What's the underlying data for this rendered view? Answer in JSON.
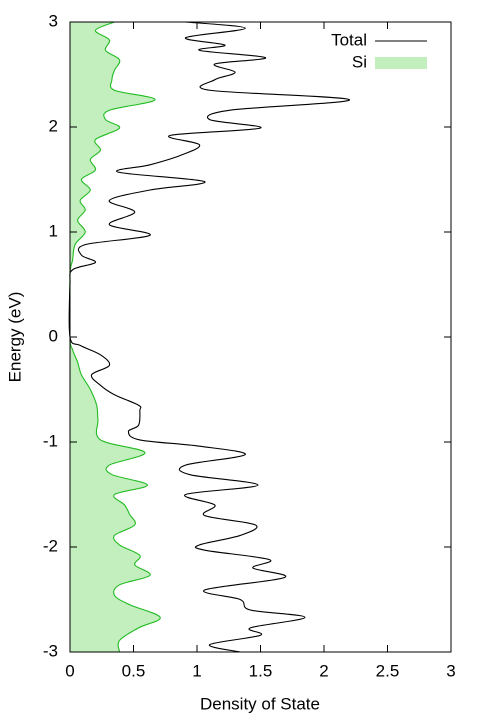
{
  "chart_data": {
    "type": "line",
    "xlabel": "Density of State",
    "ylabel": "Energy (eV)",
    "xlim": [
      0,
      3
    ],
    "xticks": [
      0,
      0.5,
      1,
      1.5,
      2,
      2.5,
      3
    ],
    "ylim": [
      -3,
      3
    ],
    "yticks": [
      -3,
      -2,
      -1,
      0,
      1,
      2,
      3
    ],
    "legend": "upper right",
    "series": [
      {
        "name": "Total",
        "color": "#000000",
        "fill": false,
        "energy": [
          3.0,
          2.94,
          2.85,
          2.78,
          2.73,
          2.66,
          2.6,
          2.52,
          2.45,
          2.35,
          2.26,
          2.16,
          2.07,
          1.99,
          1.92,
          1.83,
          1.73,
          1.64,
          1.57,
          1.48,
          1.4,
          1.3,
          1.19,
          1.07,
          0.97,
          0.88,
          0.78,
          0.71,
          0.64,
          0.5,
          0,
          -0.08,
          -0.17,
          -0.27,
          -0.36,
          -0.46,
          -0.55,
          -0.65,
          -0.7,
          -0.84,
          -0.9,
          -0.98,
          -1.04,
          -1.12,
          -1.22,
          -1.31,
          -1.41,
          -1.5,
          -1.6,
          -1.7,
          -1.79,
          -1.89,
          -1.98,
          -2.03,
          -2.12,
          -2.2,
          -2.29,
          -2.41,
          -2.5,
          -2.6,
          -2.67,
          -2.77,
          -2.84,
          -2.93,
          -3.0
        ],
        "values": [
          0.91,
          1.38,
          0.91,
          1.22,
          1.02,
          1.54,
          1.14,
          1.3,
          1.14,
          1.1,
          2.2,
          1.26,
          1.1,
          1.5,
          0.79,
          1.02,
          0.87,
          0.63,
          0.38,
          1.06,
          0.63,
          0.31,
          0.51,
          0.31,
          0.63,
          0.12,
          0.09,
          0.2,
          0.02,
          0,
          0,
          0.08,
          0.24,
          0.31,
          0.17,
          0.24,
          0.35,
          0.54,
          0.55,
          0.54,
          0.46,
          0.55,
          1.02,
          1.38,
          0.91,
          0.94,
          1.48,
          0.91,
          1.14,
          1.06,
          1.46,
          1.34,
          1.02,
          1.06,
          1.57,
          1.44,
          1.69,
          1.06,
          1.34,
          1.42,
          1.85,
          1.42,
          1.5,
          1.1,
          1.34
        ]
      },
      {
        "name": "Si",
        "color": "#22bb22",
        "fill": true,
        "fill_color": "#c2efbd",
        "energy": [
          3.0,
          2.92,
          2.83,
          2.73,
          2.64,
          2.54,
          2.45,
          2.35,
          2.26,
          2.16,
          2.07,
          1.99,
          1.88,
          1.78,
          1.69,
          1.59,
          1.5,
          1.4,
          1.3,
          1.21,
          1.11,
          1.0,
          0.88,
          0.73,
          0.59,
          0,
          -0.12,
          -0.24,
          -0.36,
          -0.5,
          -0.65,
          -0.79,
          -0.98,
          -1.1,
          -1.22,
          -1.31,
          -1.41,
          -1.5,
          -1.6,
          -1.69,
          -1.79,
          -1.89,
          -1.98,
          -2.08,
          -2.17,
          -2.27,
          -2.36,
          -2.46,
          -2.55,
          -2.67,
          -2.77,
          -2.89,
          -3.0
        ],
        "values": [
          0.35,
          0.2,
          0.31,
          0.28,
          0.39,
          0.35,
          0.33,
          0.35,
          0.67,
          0.31,
          0.28,
          0.39,
          0.2,
          0.24,
          0.16,
          0.2,
          0.09,
          0.16,
          0.08,
          0.12,
          0.06,
          0.12,
          0.04,
          0.02,
          0,
          0,
          0.02,
          0.06,
          0.09,
          0.16,
          0.21,
          0.22,
          0.24,
          0.59,
          0.31,
          0.33,
          0.61,
          0.35,
          0.43,
          0.47,
          0.51,
          0.35,
          0.39,
          0.55,
          0.51,
          0.63,
          0.39,
          0.35,
          0.47,
          0.71,
          0.54,
          0.39,
          0.39
        ]
      }
    ]
  }
}
